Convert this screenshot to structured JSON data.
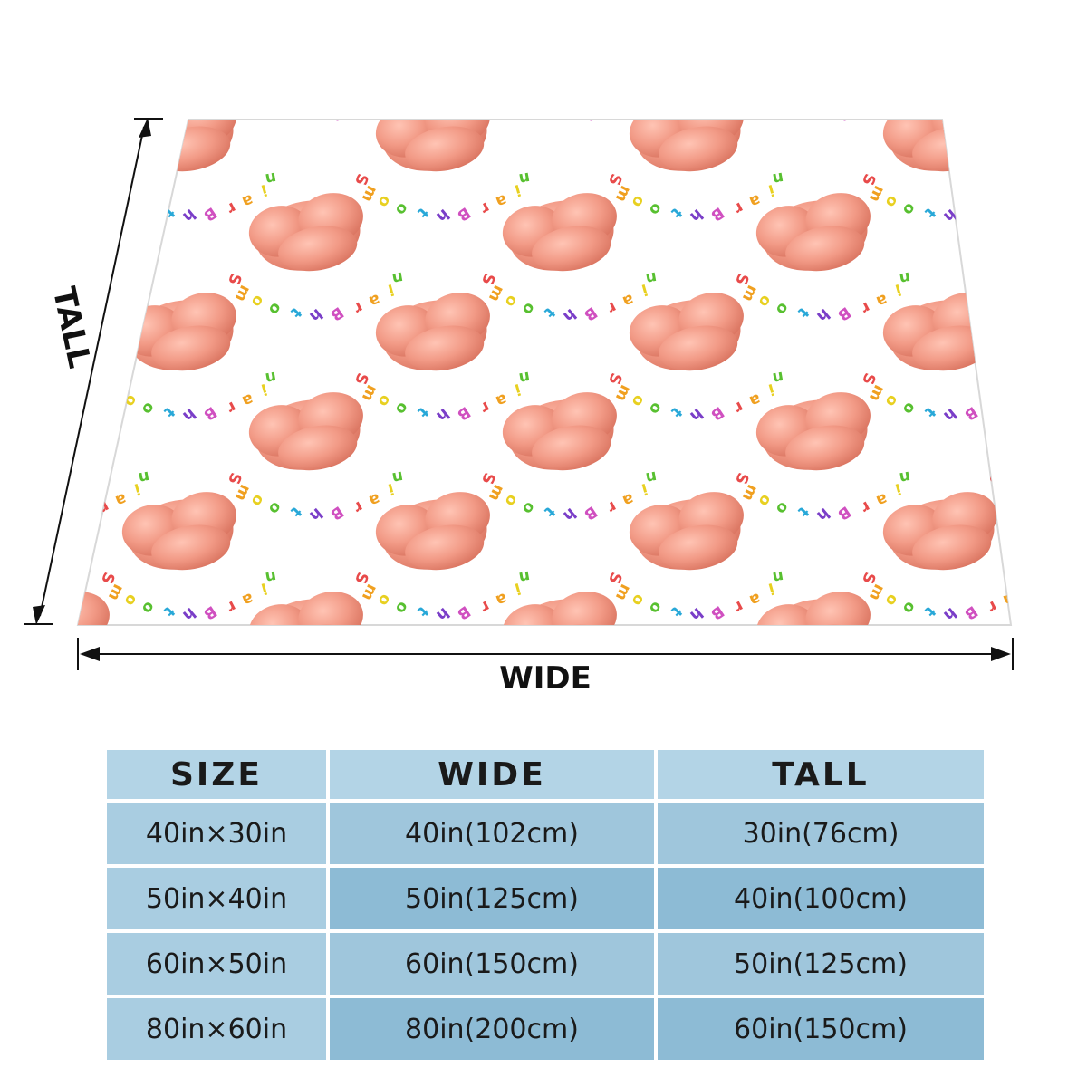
{
  "diagram": {
    "width_label": "WIDE",
    "height_label": "TALL"
  },
  "blanket_pattern": {
    "motif_words": [
      "S",
      "m",
      "o",
      "o",
      "t",
      "h",
      "B",
      "r",
      "a",
      "i",
      "n"
    ],
    "brain_color": "#f29a86",
    "letter_colors": [
      "#e84a4a",
      "#f0a020",
      "#e8d020",
      "#58c030",
      "#28a8d8",
      "#7a3ec8",
      "#d050c0"
    ]
  },
  "size_table": {
    "headers": [
      "SIZE",
      "WIDE",
      "TALL"
    ],
    "rows": [
      [
        "40in×30in",
        "40in(102cm)",
        "30in(76cm)"
      ],
      [
        "50in×40in",
        "50in(125cm)",
        "40in(100cm)"
      ],
      [
        "60in×50in",
        "60in(150cm)",
        "50in(125cm)"
      ],
      [
        "80in×60in",
        "80in(200cm)",
        "60in(150cm)"
      ]
    ],
    "header_color": "#b3d4e6",
    "cell_color": "#9fc6dc"
  }
}
